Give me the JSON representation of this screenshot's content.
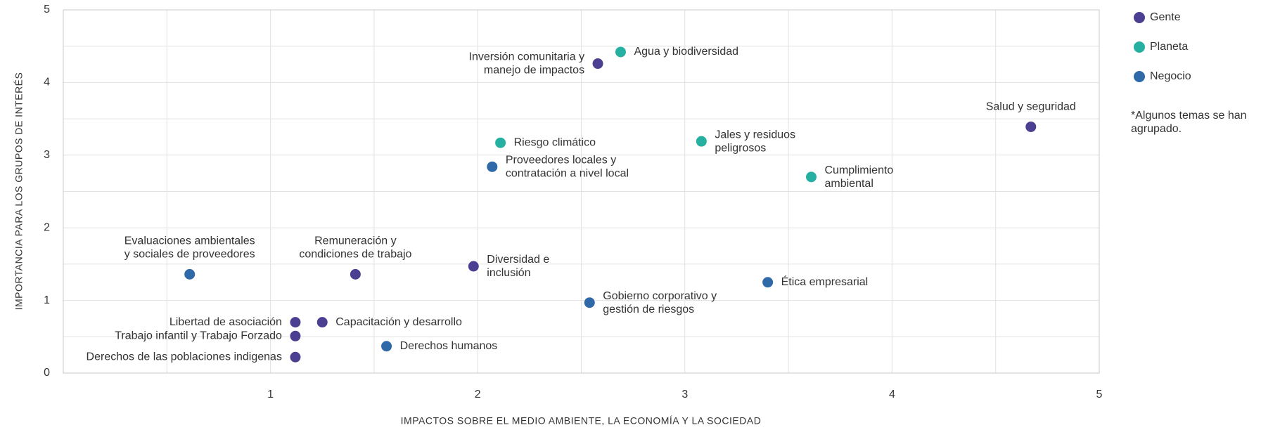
{
  "chart_data": {
    "type": "scatter",
    "xlabel": "IMPACTOS SOBRE EL MEDIO AMBIENTE, LA ECONOMÍA Y LA SOCIEDAD",
    "ylabel": "IMPORTANCIA PARA LOS GRUPOS DE INTERÉS",
    "note": [
      "*Algunos temas se han",
      "agrupado."
    ],
    "xlim": [
      0,
      5
    ],
    "ylim": [
      0,
      5
    ],
    "xticks": [
      1,
      2,
      3,
      4,
      5
    ],
    "yticks": [
      0,
      1,
      2,
      3,
      4,
      5
    ],
    "xgrid": [
      0.5,
      1,
      1.5,
      2,
      2.5,
      3,
      3.5,
      4,
      4.5
    ],
    "ygrid": [
      0.5,
      1,
      1.5,
      2,
      2.5,
      3,
      3.5,
      4,
      4.5
    ],
    "grid": true,
    "legend": "right",
    "series": [
      {
        "name": "Gente",
        "color": "#4b3f92",
        "x": [
          2.58,
          4.67,
          1.41,
          1.98,
          1.12,
          1.25,
          1.12,
          1.12
        ],
        "y": [
          4.26,
          3.39,
          1.36,
          1.47,
          0.7,
          0.7,
          0.51,
          0.22
        ],
        "labels": [
          [
            "Inversión comunitaria y",
            "manejo de impactos"
          ],
          [
            "Salud y seguridad"
          ],
          [
            "Remuneración y",
            "condiciones de trabajo"
          ],
          [
            "Diversidad e",
            "inclusión"
          ],
          [
            "Libertad de asociación"
          ],
          [
            "Capacitación y desarrollo"
          ],
          [
            "Trabajo infantil y Trabajo Forzado"
          ],
          [
            "Derechos de las poblaciones indigenas"
          ]
        ]
      },
      {
        "name": "Planeta",
        "color": "#26b0a2",
        "x": [
          2.69,
          2.11,
          3.08,
          3.61
        ],
        "y": [
          4.42,
          3.17,
          3.19,
          2.7
        ],
        "labels": [
          [
            "Agua y biodiversidad"
          ],
          [
            "Riesgo climático"
          ],
          [
            "Jales y residuos",
            "peligrosos"
          ],
          [
            "Cumplimiento",
            "ambiental"
          ]
        ]
      },
      {
        "name": "Negocio",
        "color": "#2f69a8",
        "x": [
          2.07,
          0.61,
          3.4,
          2.54,
          1.56
        ],
        "y": [
          2.84,
          1.36,
          1.25,
          0.97,
          0.37
        ],
        "labels": [
          [
            "Proveedores locales y",
            "contratación a nivel local"
          ],
          [
            "Evaluaciones ambientales",
            "y sociales de proveedores"
          ],
          [
            "Ética empresarial"
          ],
          [
            "Gobierno corporativo y",
            "gestión de riesgos"
          ],
          [
            "Derechos humanos"
          ]
        ]
      }
    ]
  }
}
